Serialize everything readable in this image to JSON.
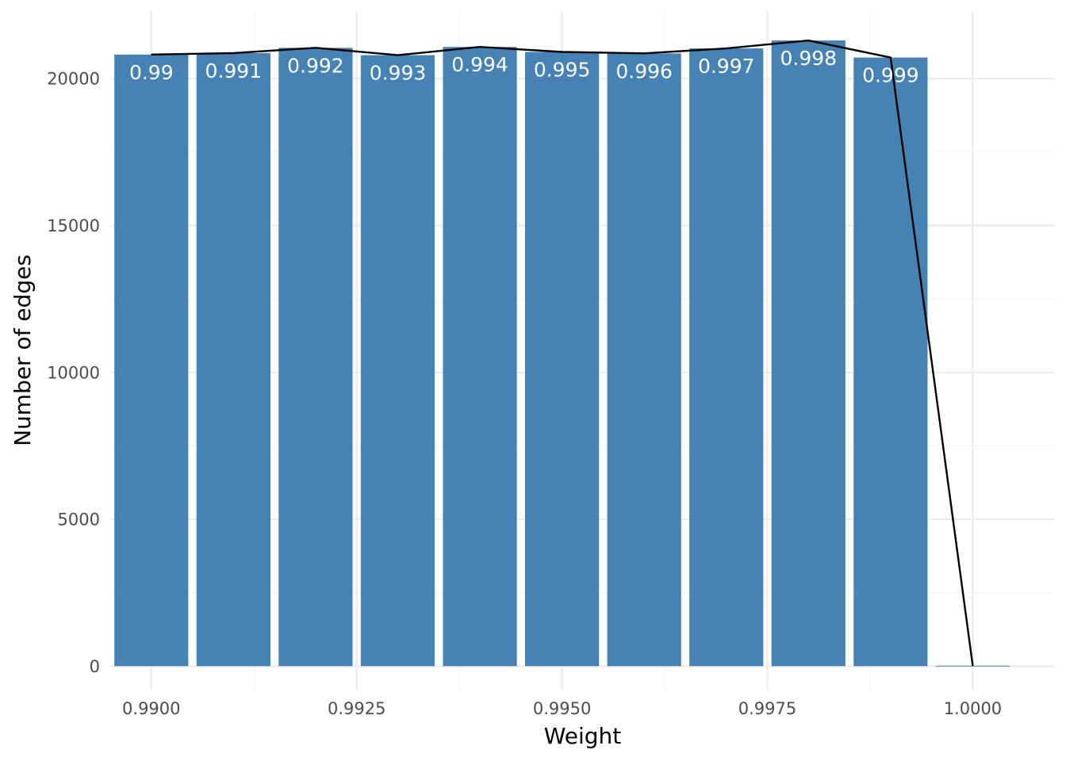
{
  "chart_data": {
    "type": "bar",
    "xlabel": "Weight",
    "ylabel": "Number of edges",
    "xlim": [
      0.9895,
      1.001
    ],
    "ylim": [
      -800,
      22300
    ],
    "x_ticks": [
      0.99,
      0.9925,
      0.995,
      0.9975,
      1.0
    ],
    "x_tick_labels": [
      "0.9900",
      "0.9925",
      "0.9950",
      "0.9975",
      "1.0000"
    ],
    "y_ticks": [
      0,
      5000,
      10000,
      15000,
      20000
    ],
    "y_tick_labels": [
      "0",
      "5000",
      "10000",
      "15000",
      "20000"
    ],
    "bar_width": 0.0009,
    "bar_color": "#4682b4",
    "line_color": "#000000",
    "grid": true,
    "bars": [
      {
        "x": 0.99,
        "value": 20820,
        "label": "0.99"
      },
      {
        "x": 0.991,
        "value": 20870,
        "label": "0.991"
      },
      {
        "x": 0.992,
        "value": 21050,
        "label": "0.992"
      },
      {
        "x": 0.993,
        "value": 20800,
        "label": "0.993"
      },
      {
        "x": 0.994,
        "value": 21080,
        "label": "0.994"
      },
      {
        "x": 0.995,
        "value": 20910,
        "label": "0.995"
      },
      {
        "x": 0.996,
        "value": 20860,
        "label": "0.996"
      },
      {
        "x": 0.997,
        "value": 21030,
        "label": "0.997"
      },
      {
        "x": 0.998,
        "value": 21300,
        "label": "0.998"
      },
      {
        "x": 0.999,
        "value": 20720,
        "label": "0.999"
      },
      {
        "x": 1.0,
        "value": 15,
        "label": ""
      }
    ],
    "line": [
      {
        "x": 0.99,
        "y": 20820
      },
      {
        "x": 0.991,
        "y": 20870
      },
      {
        "x": 0.992,
        "y": 21050
      },
      {
        "x": 0.993,
        "y": 20800
      },
      {
        "x": 0.994,
        "y": 21080
      },
      {
        "x": 0.995,
        "y": 20910
      },
      {
        "x": 0.996,
        "y": 20860
      },
      {
        "x": 0.997,
        "y": 21030
      },
      {
        "x": 0.998,
        "y": 21300
      },
      {
        "x": 0.999,
        "y": 20720
      },
      {
        "x": 1.0,
        "y": 15
      }
    ]
  }
}
